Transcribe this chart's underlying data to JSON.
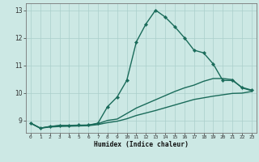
{
  "background_color": "#cce8e4",
  "grid_color": "#aacfcb",
  "line_color": "#1a6b5a",
  "xlabel": "Humidex (Indice chaleur)",
  "xlim": [
    -0.5,
    23.5
  ],
  "ylim": [
    8.55,
    13.25
  ],
  "yticks": [
    9,
    10,
    11,
    12,
    13
  ],
  "xticks": [
    0,
    1,
    2,
    3,
    4,
    5,
    6,
    7,
    8,
    9,
    10,
    11,
    12,
    13,
    14,
    15,
    16,
    17,
    18,
    19,
    20,
    21,
    22,
    23
  ],
  "series": [
    {
      "x": [
        0,
        1,
        2,
        3,
        4,
        5,
        6,
        7,
        8,
        9,
        10,
        11,
        12,
        13,
        14,
        15,
        16,
        17,
        18,
        19,
        20,
        21,
        22,
        23
      ],
      "y": [
        8.9,
        8.72,
        8.78,
        8.82,
        8.82,
        8.83,
        8.83,
        8.9,
        9.5,
        9.85,
        10.45,
        11.85,
        12.5,
        13.0,
        12.75,
        12.4,
        12.0,
        11.55,
        11.45,
        11.05,
        10.45,
        10.45,
        10.2,
        10.1
      ],
      "marker": "D",
      "markersize": 2.2,
      "linewidth": 1.0,
      "has_marker": true
    },
    {
      "x": [
        0,
        1,
        2,
        3,
        4,
        5,
        6,
        7,
        8,
        9,
        10,
        11,
        12,
        13,
        14,
        15,
        16,
        17,
        18,
        19,
        20,
        21,
        22,
        23
      ],
      "y": [
        8.9,
        8.72,
        8.78,
        8.81,
        8.81,
        8.82,
        8.83,
        8.88,
        9.0,
        9.05,
        9.25,
        9.45,
        9.6,
        9.75,
        9.9,
        10.05,
        10.18,
        10.28,
        10.42,
        10.52,
        10.52,
        10.48,
        10.18,
        10.08
      ],
      "marker": "",
      "markersize": 0,
      "linewidth": 1.0,
      "has_marker": false
    },
    {
      "x": [
        0,
        1,
        2,
        3,
        4,
        5,
        6,
        7,
        8,
        9,
        10,
        11,
        12,
        13,
        14,
        15,
        16,
        17,
        18,
        19,
        20,
        21,
        22,
        23
      ],
      "y": [
        8.9,
        8.72,
        8.76,
        8.78,
        8.79,
        8.8,
        8.81,
        8.85,
        8.92,
        8.97,
        9.06,
        9.18,
        9.27,
        9.36,
        9.46,
        9.56,
        9.66,
        9.76,
        9.82,
        9.88,
        9.93,
        9.98,
        9.99,
        10.05
      ],
      "marker": "",
      "markersize": 0,
      "linewidth": 1.0,
      "has_marker": false
    }
  ]
}
